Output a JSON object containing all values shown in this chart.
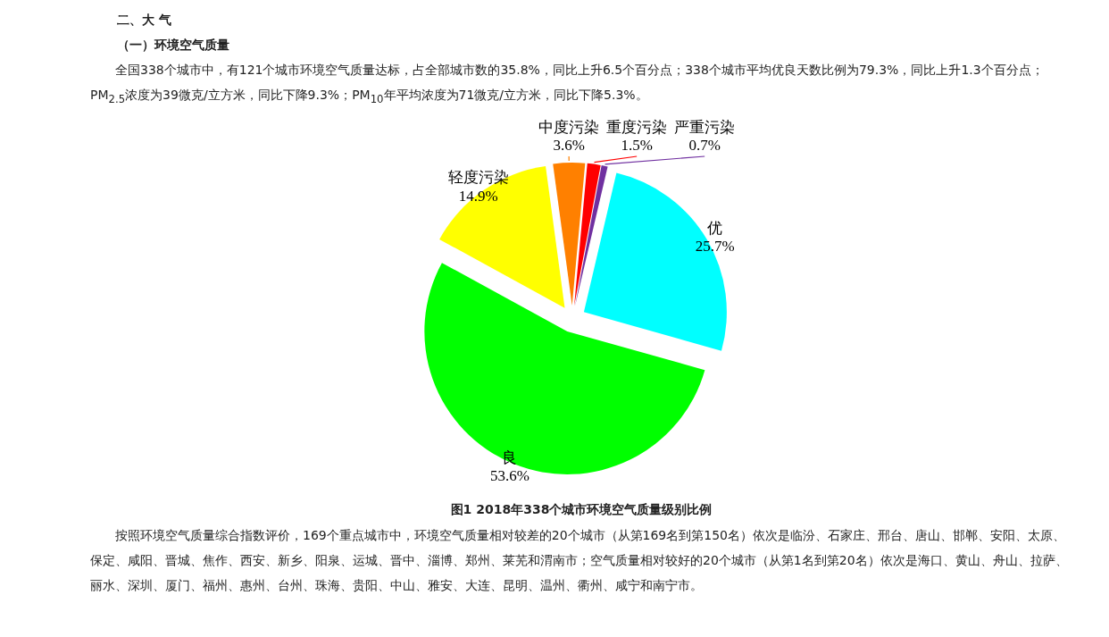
{
  "chart_data": {
    "type": "pie",
    "title": "图1 2018年338个城市环境空气质量级别比例",
    "categories": [
      "优",
      "良",
      "轻度污染",
      "中度污染",
      "重度污染",
      "严重污染"
    ],
    "values": [
      25.7,
      53.6,
      14.9,
      3.6,
      1.5,
      0.7
    ],
    "colors": [
      "#00ffff",
      "#00ff00",
      "#ffff00",
      "#ff8000",
      "#ff0000",
      "#7030a0"
    ],
    "value_labels": [
      "25.7%",
      "53.6%",
      "14.9%",
      "3.6%",
      "1.5%",
      "0.7%"
    ],
    "annotations": [
      "二、大 气",
      "（一）环境空气质量",
      "全国338个城市中，有121个城市环境空气质量达标，占全部城市数的35.8%，同比上升6.5个百分点；338个城市平均优良天数比例为79.3%，同比上升1.3个百分点；PM$_{2.5}$浓度为39微克/立方米，同比下降9.3%；PM$_{10}$年平均浓度为71微克/立方米，同比下降5.3%。",
      "按照环境空气质量综合指数评价，169个重点城市中，环境空气质量相对较差的20个城市（从第169名到第150名）依次是临汾、石家庄、邢台、唐山、邯郸、安阳、太原、保定、咸阳、晋城、焦作、西安、新乡、阳泉、运城、晋中、淄博、郑州、莱芜和渭南市；空气质量相对较好的20个城市（从第1名到第20名）依次是海口、黄山、舟山、拉萨、丽水、深圳、厦门、福州、惠州、台州、珠海、贵阳、中山、雅安、大连、昆明、温州、衢州、咸宁和南宁市。"
    ]
  }
}
